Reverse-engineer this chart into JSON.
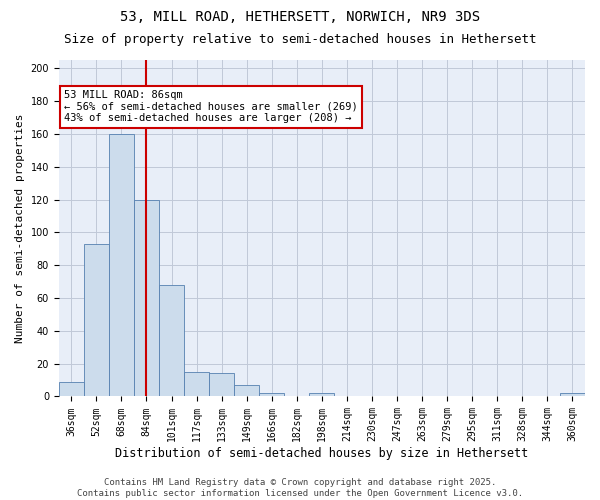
{
  "title1": "53, MILL ROAD, HETHERSETT, NORWICH, NR9 3DS",
  "title2": "Size of property relative to semi-detached houses in Hethersett",
  "xlabel": "Distribution of semi-detached houses by size in Hethersett",
  "ylabel": "Number of semi-detached properties",
  "categories": [
    "36sqm",
    "52sqm",
    "68sqm",
    "84sqm",
    "101sqm",
    "117sqm",
    "133sqm",
    "149sqm",
    "166sqm",
    "182sqm",
    "198sqm",
    "214sqm",
    "230sqm",
    "247sqm",
    "263sqm",
    "279sqm",
    "295sqm",
    "311sqm",
    "328sqm",
    "344sqm",
    "360sqm"
  ],
  "values": [
    9,
    93,
    160,
    120,
    68,
    15,
    14,
    7,
    2,
    0,
    2,
    0,
    0,
    0,
    0,
    0,
    0,
    0,
    0,
    0,
    2
  ],
  "bar_color": "#ccdcec",
  "bar_edge_color": "#5580b0",
  "vline_x": 3,
  "vline_color": "#cc0000",
  "annotation_box_text": "53 MILL ROAD: 86sqm\n← 56% of semi-detached houses are smaller (269)\n43% of semi-detached houses are larger (208) →",
  "ylim": [
    0,
    205
  ],
  "yticks": [
    0,
    20,
    40,
    60,
    80,
    100,
    120,
    140,
    160,
    180,
    200
  ],
  "grid_color": "#c0c8d8",
  "background_color": "#e8eef8",
  "footer": "Contains HM Land Registry data © Crown copyright and database right 2025.\nContains public sector information licensed under the Open Government Licence v3.0.",
  "title1_fontsize": 10,
  "title2_fontsize": 9,
  "xlabel_fontsize": 8.5,
  "ylabel_fontsize": 8,
  "tick_fontsize": 7,
  "annotation_fontsize": 7.5,
  "footer_fontsize": 6.5
}
